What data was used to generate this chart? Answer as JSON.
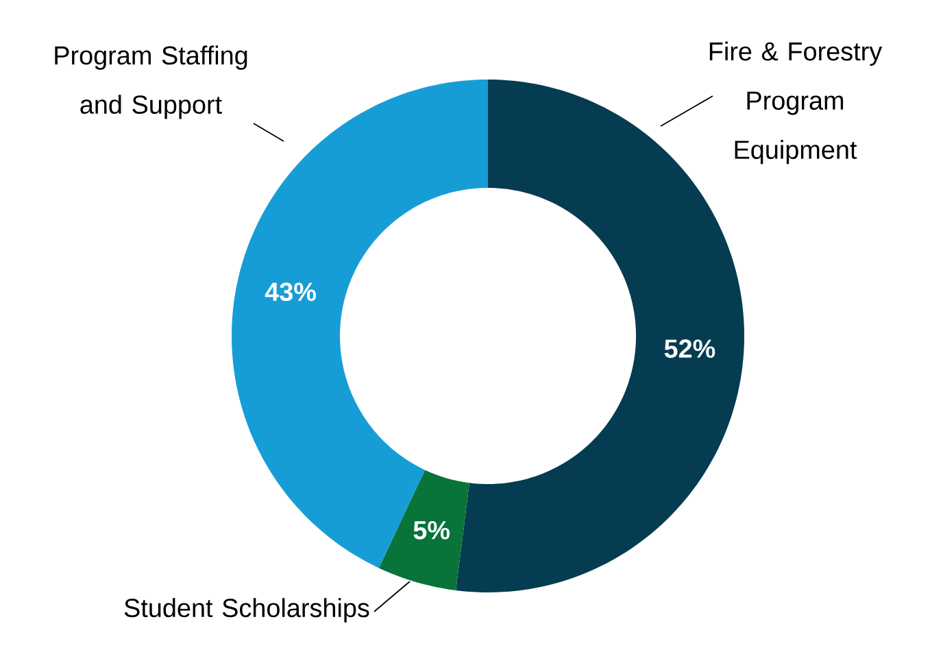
{
  "chart_data": {
    "type": "donut",
    "categories": [
      "Fire & Forestry Program Equipment",
      "Student Scholarships",
      "Program Staffing and Support"
    ],
    "values": [
      52,
      5,
      43
    ],
    "colors": [
      "#053c51",
      "#08743a",
      "#179dd6"
    ],
    "value_labels": [
      "52%",
      "5%",
      "43%"
    ]
  }
}
